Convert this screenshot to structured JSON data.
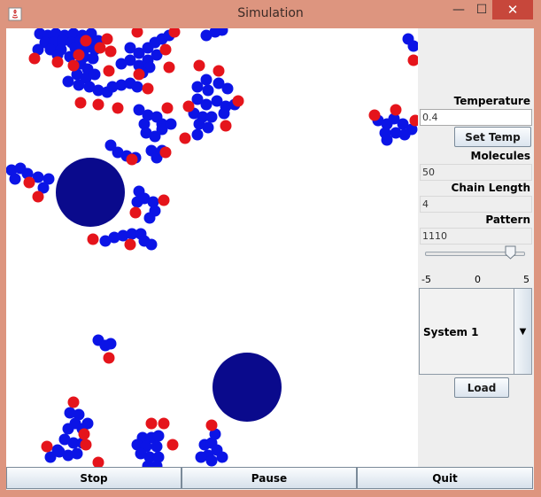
{
  "window": {
    "title": "Simulation",
    "minimize_glyph": "—",
    "maximize_glyph": "☐",
    "close_glyph": "✕"
  },
  "panel": {
    "temperature_label": "Temperature",
    "temperature_value": "0.4",
    "set_temp_label": "Set Temp",
    "molecules_label": "Molecules",
    "molecules_value": "50",
    "chain_length_label": "Chain Length",
    "chain_length_value": "4",
    "pattern_label": "Pattern",
    "pattern_value": "1110",
    "slider": {
      "min": "-5",
      "mid": "0",
      "max": "5",
      "value_fraction": 0.85
    },
    "system_select": "System 1",
    "load_label": "Load"
  },
  "buttons": {
    "stop": "Stop",
    "pause": "Pause",
    "quit": "Quit"
  },
  "colors": {
    "monomer_type_a": "#0b14e6",
    "monomer_type_b": "#e5141b",
    "obstacle": "#0a0a8c"
  }
}
